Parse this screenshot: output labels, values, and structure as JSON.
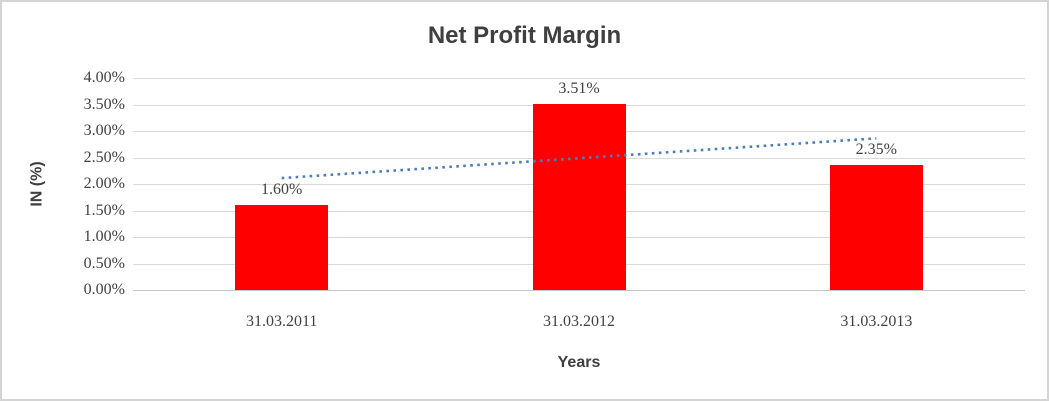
{
  "chart_data": {
    "type": "bar",
    "title": "Net Profit Margin",
    "xlabel": "Years",
    "ylabel": "IN (%)",
    "categories": [
      "31.03.2011",
      "31.03.2012",
      "31.03.2013"
    ],
    "values": [
      1.6,
      3.51,
      2.35
    ],
    "data_labels": [
      "1.60%",
      "3.51%",
      "2.35%"
    ],
    "ylim": [
      0,
      4
    ],
    "ytick_step": 0.5,
    "ytick_labels": [
      "0.00%",
      "0.50%",
      "1.00%",
      "1.50%",
      "2.00%",
      "2.50%",
      "3.00%",
      "3.50%",
      "4.00%"
    ],
    "grid": true,
    "legend": "none",
    "bar_color": "#ff0000",
    "text_color": "#404040",
    "gridline_color": "#d9d9d9",
    "trendline": {
      "kind": "linear",
      "style": "dotted",
      "color": "#4a7ebb",
      "endpoint_values": [
        2.11,
        2.86
      ]
    }
  }
}
